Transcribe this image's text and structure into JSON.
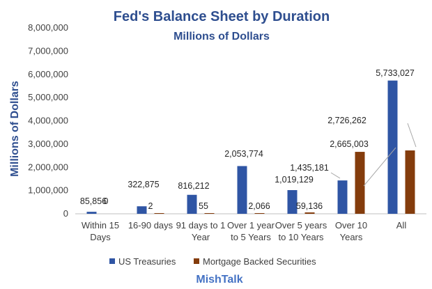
{
  "chart_data": {
    "type": "bar",
    "title": "Fed's Balance Sheet by Duration",
    "subtitle": "Millions of Dollars",
    "ylabel": "Millions of Dollars",
    "xlabel": "",
    "ylim": [
      0,
      8000000
    ],
    "yticks": [
      0,
      1000000,
      2000000,
      3000000,
      4000000,
      5000000,
      6000000,
      7000000,
      8000000
    ],
    "ytick_labels": [
      "0",
      "1,000,000",
      "2,000,000",
      "3,000,000",
      "4,000,000",
      "5,000,000",
      "6,000,000",
      "7,000,000",
      "8,000,000"
    ],
    "categories": [
      [
        "Within 15",
        "Days"
      ],
      [
        "16-90 days"
      ],
      [
        "91 days to 1",
        "Year"
      ],
      [
        "Over 1 year",
        "to 5 Years"
      ],
      [
        "Over 5 years",
        "to 10 Years"
      ],
      [
        "Over 10",
        "Years"
      ],
      [
        "All"
      ]
    ],
    "series": [
      {
        "name": "US Treasuries",
        "color": "#2f55a4",
        "values": [
          85856,
          322875,
          816212,
          2053774,
          1019129,
          1435181,
          5733027
        ],
        "labels": [
          "85,856",
          "322,875",
          "816,212",
          "2,053,774",
          "1,019,129",
          "1,435,181",
          "5,733,027"
        ]
      },
      {
        "name": "Mortgage Backed Securities",
        "color": "#843c0c",
        "values": [
          0,
          2,
          55,
          2066,
          59136,
          2665003,
          2726262
        ],
        "labels": [
          "0",
          "2",
          "55",
          "2,066",
          "59,136",
          "2,665,003",
          "2,726,262"
        ]
      }
    ],
    "grid": false,
    "legend_position": "bottom"
  },
  "source": "MishTalk"
}
